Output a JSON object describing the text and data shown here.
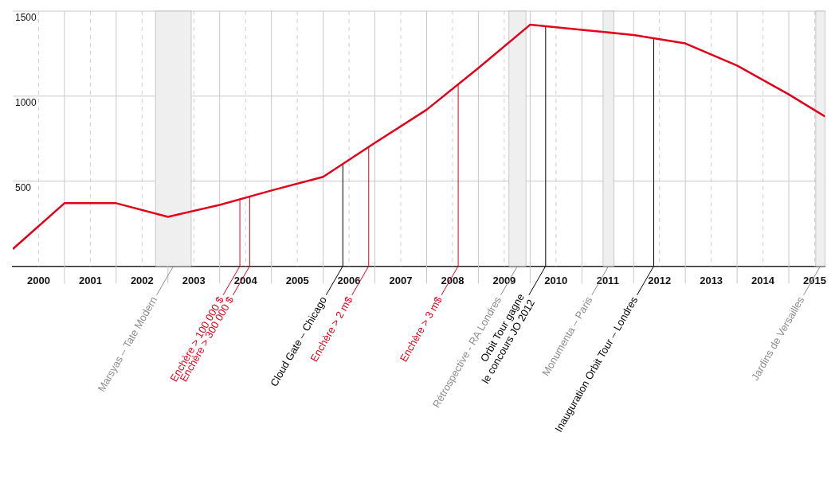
{
  "chart_data": {
    "type": "line",
    "x": [
      1999.5,
      2000.5,
      2001.5,
      2002.5,
      2003.5,
      2004.5,
      2005.5,
      2006.5,
      2007.5,
      2008.5,
      2009.5,
      2010.5,
      2011.5,
      2012.5,
      2013.5,
      2014.5,
      2015.2
    ],
    "series": [
      {
        "color": "#e2001a",
        "values": [
          100,
          370,
          370,
          290,
          360,
          445,
          525,
          725,
          920,
          1165,
          1420,
          1390,
          1360,
          1310,
          1180,
          1010,
          880
        ]
      }
    ],
    "xlim": [
      1999.5,
      2015.2
    ],
    "xticks": [
      2000,
      {
        "value": 2000.5,
        "label": null
      },
      2001,
      {
        "value": 2001.5,
        "label": null
      },
      2002,
      {
        "value": 2002.5,
        "label": null
      },
      2003,
      {
        "value": 2003.5,
        "label": null
      },
      2004,
      {
        "value": 2004.5,
        "label": null
      },
      2005,
      {
        "value": 2005.5,
        "label": null
      },
      2006,
      {
        "value": 2006.5,
        "label": null
      },
      2007,
      {
        "value": 2007.5,
        "label": null
      },
      2008,
      {
        "value": 2008.5,
        "label": null
      },
      2009,
      {
        "value": 2009.5,
        "label": null
      },
      2010,
      {
        "value": 2010.5,
        "label": null
      },
      2011,
      {
        "value": 2011.5,
        "label": null
      },
      2012,
      {
        "value": 2012.5,
        "label": null
      },
      2013,
      {
        "value": 2013.5,
        "label": null
      },
      2014,
      {
        "value": 2014.5,
        "label": null
      },
      2015
    ],
    "ylim": [
      0,
      1500
    ],
    "yticks": [
      500,
      1000,
      1500
    ],
    "grid": true,
    "legend": false,
    "bands": [
      {
        "axis": "x",
        "from": 2002.26,
        "to": 2002.95,
        "label": "Marsyas – Tate Modern",
        "color": "#efefef"
      },
      {
        "axis": "x",
        "from": 2009.09,
        "to": 2009.42,
        "label": "Rétrospective - RA Londres",
        "color": "#efefef"
      },
      {
        "axis": "x",
        "from": 2010.91,
        "to": 2011.12,
        "label": "Monumenta – Paris",
        "color": "#efefef"
      },
      {
        "axis": "x",
        "from": 2015.02,
        "to": 2015.2,
        "label": "Jardins de Versailles",
        "color": "#efefef"
      }
    ],
    "ref_lines": [
      {
        "axis": "x",
        "value": 2003.89,
        "label": "Enchère > 100 000 $",
        "color": "#e2001a"
      },
      {
        "axis": "x",
        "value": 2004.08,
        "label": "Enchère > 300 000 $",
        "color": "#e2001a"
      },
      {
        "axis": "x",
        "value": 2005.88,
        "label": "Cloud Gate – Chicago",
        "color": "#000000"
      },
      {
        "axis": "x",
        "value": 2006.38,
        "label": "Enchère > 2 m$",
        "color": "#e2001a"
      },
      {
        "axis": "x",
        "value": 2008.11,
        "label": "Enchère > 3 m$",
        "color": "#e2001a"
      },
      {
        "axis": "x",
        "value": 2009.8,
        "label": "Orbit Tour gagne\nle concours JO 2012",
        "color": "#000000"
      },
      {
        "axis": "x",
        "value": 2011.89,
        "label": "Inauguration Orbit Tour – Londres",
        "color": "#000000"
      }
    ]
  }
}
